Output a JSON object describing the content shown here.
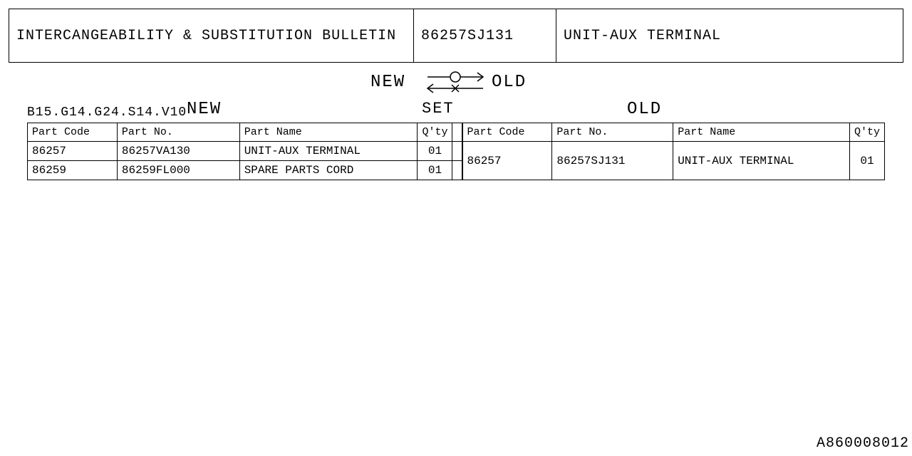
{
  "header": {
    "title": "INTERCANGEABILITY & SUBSTITUTION BULLETIN",
    "part_number": "86257SJ131",
    "part_name": "UNIT-AUX TERMINAL"
  },
  "diagram": {
    "left_label": "NEW",
    "right_label": "OLD",
    "line_color": "#000000"
  },
  "set_label": "SET",
  "model_code": "B15.G14.G24.S14.V10",
  "section_labels": {
    "new": "NEW",
    "old": "OLD"
  },
  "columns": {
    "part_code": "Part Code",
    "part_no": "Part No.",
    "part_name": "Part Name",
    "qty": "Q'ty"
  },
  "new_rows": [
    {
      "part_code": "86257",
      "part_no": "86257VA130",
      "part_name": "UNIT-AUX TERMINAL",
      "qty": "01"
    },
    {
      "part_code": "86259",
      "part_no": "86259FL000",
      "part_name": "SPARE PARTS CORD",
      "qty": "01"
    }
  ],
  "old_rows": [
    {
      "part_code": "86257",
      "part_no": "86257SJ131",
      "part_name": "UNIT-AUX TERMINAL",
      "qty": "01"
    }
  ],
  "footer_code": "A860008012",
  "colors": {
    "text": "#000000",
    "background": "#ffffff",
    "border": "#000000"
  }
}
